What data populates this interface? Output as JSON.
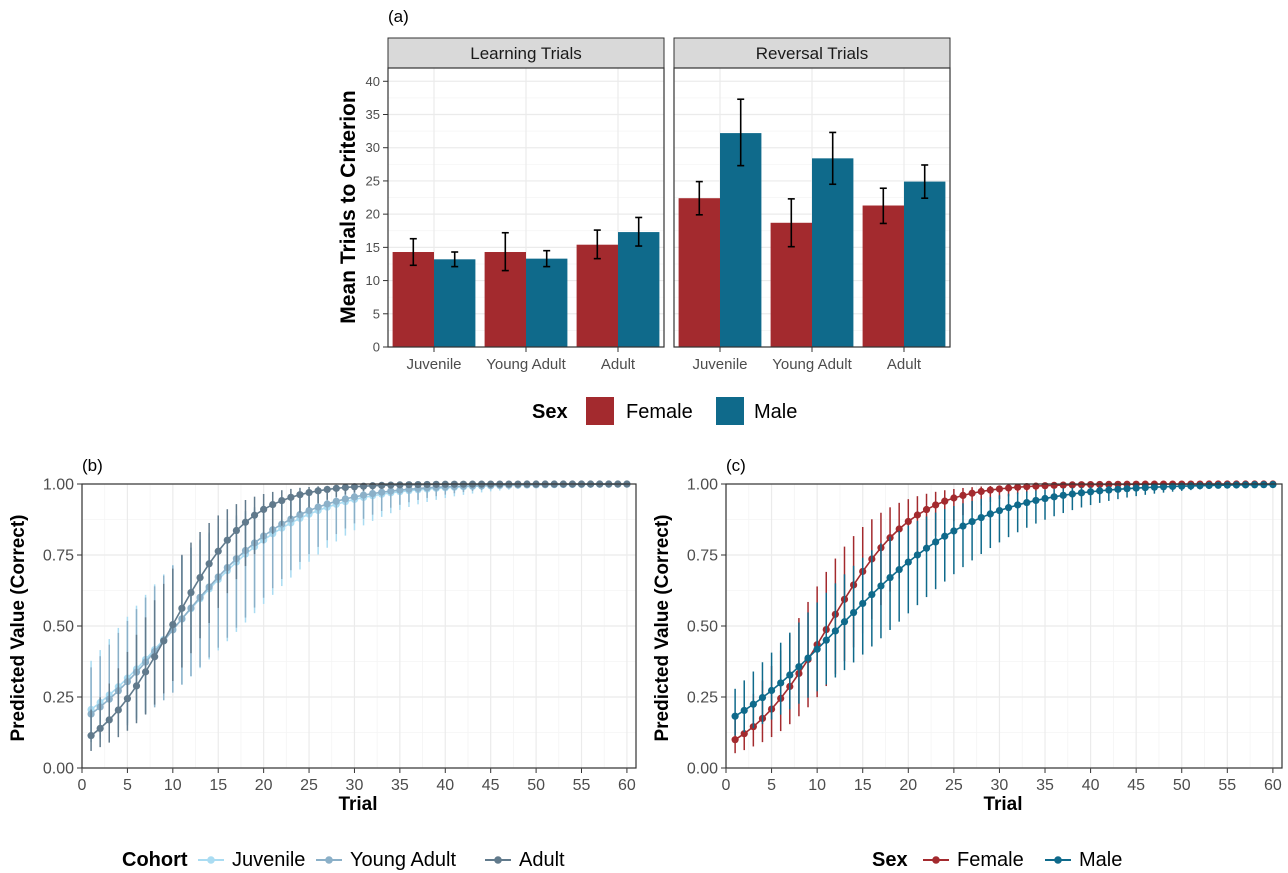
{
  "colors": {
    "female": "#a32a2e",
    "male": "#0f6a8b",
    "juvenile": "#aadcf2",
    "young_adult": "#8bb0c8",
    "adult": "#617a8c",
    "grid": "#ebebeb",
    "strip_bg": "#d9d9d9"
  },
  "chart_data": [
    {
      "panel": "(a)",
      "type": "bar",
      "facets": [
        "Learning Trials",
        "Reversal Trials"
      ],
      "categories": [
        "Juvenile",
        "Young Adult",
        "Adult"
      ],
      "ylabel": "Mean Trials to Criterion",
      "xlabel": "",
      "ylim": [
        0,
        42
      ],
      "yticks": [
        0,
        5,
        10,
        15,
        20,
        25,
        30,
        35,
        40
      ],
      "legend": {
        "title": "Sex",
        "position": "bottom",
        "entries": [
          "Female",
          "Male"
        ]
      },
      "series": [
        {
          "name": "Female",
          "values": {
            "Learning Trials": [
              14.3,
              14.3,
              15.4
            ],
            "Reversal Trials": [
              22.4,
              18.7,
              21.3
            ]
          },
          "error_low": {
            "Learning Trials": [
              12.3,
              11.5,
              13.3
            ],
            "Reversal Trials": [
              19.9,
              15.1,
              18.6
            ]
          },
          "error_high": {
            "Learning Trials": [
              16.3,
              17.2,
              17.6
            ],
            "Reversal Trials": [
              24.9,
              22.3,
              23.9
            ]
          }
        },
        {
          "name": "Male",
          "values": {
            "Learning Trials": [
              13.2,
              13.3,
              17.3
            ],
            "Reversal Trials": [
              32.2,
              28.4,
              24.9
            ]
          },
          "error_low": {
            "Learning Trials": [
              12.1,
              12.1,
              15.2
            ],
            "Reversal Trials": [
              27.3,
              24.5,
              22.4
            ]
          },
          "error_high": {
            "Learning Trials": [
              14.3,
              14.5,
              19.5
            ],
            "Reversal Trials": [
              37.3,
              32.3,
              27.4
            ]
          }
        }
      ],
      "grid": true
    },
    {
      "panel": "(b)",
      "type": "line",
      "xlabel": "Trial",
      "ylabel": "Predicted Value (Correct)",
      "xlim": [
        0,
        61
      ],
      "ylim": [
        0,
        1
      ],
      "xticks": [
        0,
        5,
        10,
        15,
        20,
        25,
        30,
        35,
        40,
        45,
        50,
        55,
        60
      ],
      "yticks": [
        "0.00",
        "0.25",
        "0.50",
        "0.75",
        "1.00"
      ],
      "legend": {
        "title": "Cohort",
        "position": "bottom",
        "entries": [
          "Juvenile",
          "Young Adult",
          "Adult"
        ]
      },
      "x_range": [
        1,
        60
      ],
      "series": [
        {
          "name": "Juvenile",
          "logit_start": -1.35,
          "logit_slope": 0.145,
          "ci_logit_halfwidth_start": 0.85,
          "ci_logit_halfwidth_end": 1.6
        },
        {
          "name": "Young Adult",
          "logit_start": -1.45,
          "logit_slope": 0.155,
          "ci_logit_halfwidth_start": 0.85,
          "ci_logit_halfwidth_end": 1.6
        },
        {
          "name": "Adult",
          "logit_start": -2.05,
          "logit_slope": 0.23,
          "ci_logit_halfwidth_start": 0.7,
          "ci_logit_halfwidth_end": 1.6
        }
      ],
      "grid": true
    },
    {
      "panel": "(c)",
      "type": "line",
      "xlabel": "Trial",
      "ylabel": "Predicted Value (Correct)",
      "xlim": [
        0,
        61
      ],
      "ylim": [
        0,
        1
      ],
      "xticks": [
        0,
        5,
        10,
        15,
        20,
        25,
        30,
        35,
        40,
        45,
        50,
        55,
        60
      ],
      "yticks": [
        "0.00",
        "0.25",
        "0.50",
        "0.75",
        "1.00"
      ],
      "legend": {
        "title": "Sex",
        "position": "bottom",
        "entries": [
          "Female",
          "Male"
        ]
      },
      "x_range": [
        1,
        60
      ],
      "series": [
        {
          "name": "Female",
          "logit_start": -2.2,
          "logit_slope": 0.215,
          "ci_logit_halfwidth_start": 0.7,
          "ci_logit_halfwidth_end": 1.6
        },
        {
          "name": "Male",
          "logit_start": -1.5,
          "logit_slope": 0.13,
          "ci_logit_halfwidth_start": 0.55,
          "ci_logit_halfwidth_end": 1.3
        }
      ],
      "grid": true
    }
  ]
}
